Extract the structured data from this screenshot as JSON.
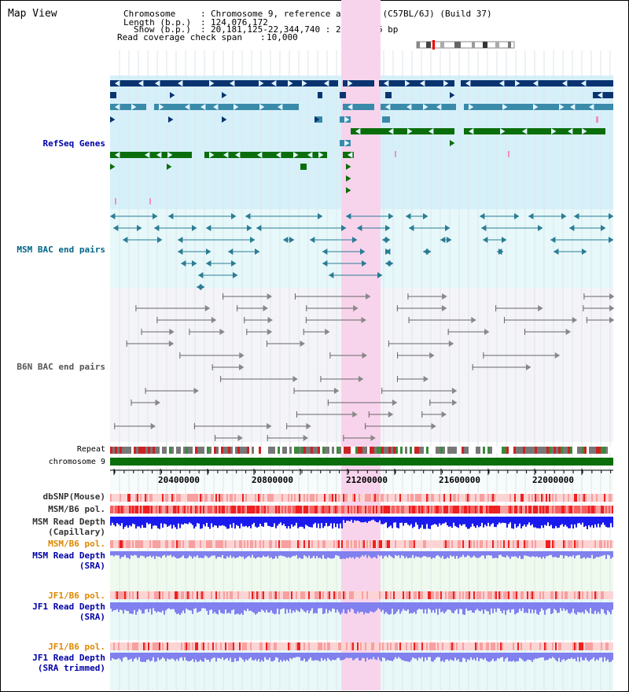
{
  "view_title": "Map View",
  "header": {
    "chromosome_key": "Chromosome",
    "chromosome_val": "Chromosome 9, reference assembly (C57BL/6J) (Build 37)",
    "length_key": "Length (b.p.)",
    "length_val": "124,076,172",
    "show_key": "Show (b.p.)",
    "show_val": "20,181,125-22,344,740 : 2,163,616 bp",
    "coverage_key": "Read coverage check span",
    "coverage_val": "10,000"
  },
  "tracks": {
    "refseq": "RefSeq Genes",
    "msm_bac": "MSM BAC end pairs",
    "b6n_bac": "B6N BAC end pairs",
    "repeat": "Repeat",
    "chromosome": "chromosome 9",
    "dbsnp": "dbSNP(Mouse)",
    "msm_b6_pol_1": "MSM/B6 pol.",
    "msm_depth_cap_1": "MSM Read Depth",
    "msm_depth_cap_2": "(Capillary)",
    "msm_b6_pol_2": "MSM/B6 pol.",
    "msm_depth_sra_1": "MSM Read Depth",
    "msm_depth_sra_2": "(SRA)",
    "jf1_b6_pol_1": "JF1/B6 pol.",
    "jf1_depth_sra_1": "JF1 Read Depth",
    "jf1_depth_sra_2": "(SRA)",
    "jf1_b6_pol_2": "JF1/B6 pol.",
    "jf1_depth_trim_1": "JF1 Read Depth",
    "jf1_depth_trim_2": "(SRA trimmed)"
  },
  "axis_ticks": [
    "20400000",
    "20800000",
    "21200000",
    "21600000",
    "22000000"
  ],
  "colors": {
    "refseq_label": "#0000aa",
    "msm_label": "#006688",
    "b6n_label": "#555555",
    "pol_label": "#dd8800",
    "depth_label": "#0000aa",
    "highlight": "#f8d4ec",
    "refseq_dark": "#0a3470",
    "refseq_mid": "#3a8aaa",
    "refseq_green": "#0a6e0a",
    "chromosome_bar": "#0a6e0a",
    "depth_blue": "#1a1aee",
    "depth_light": "#8080ee"
  }
}
